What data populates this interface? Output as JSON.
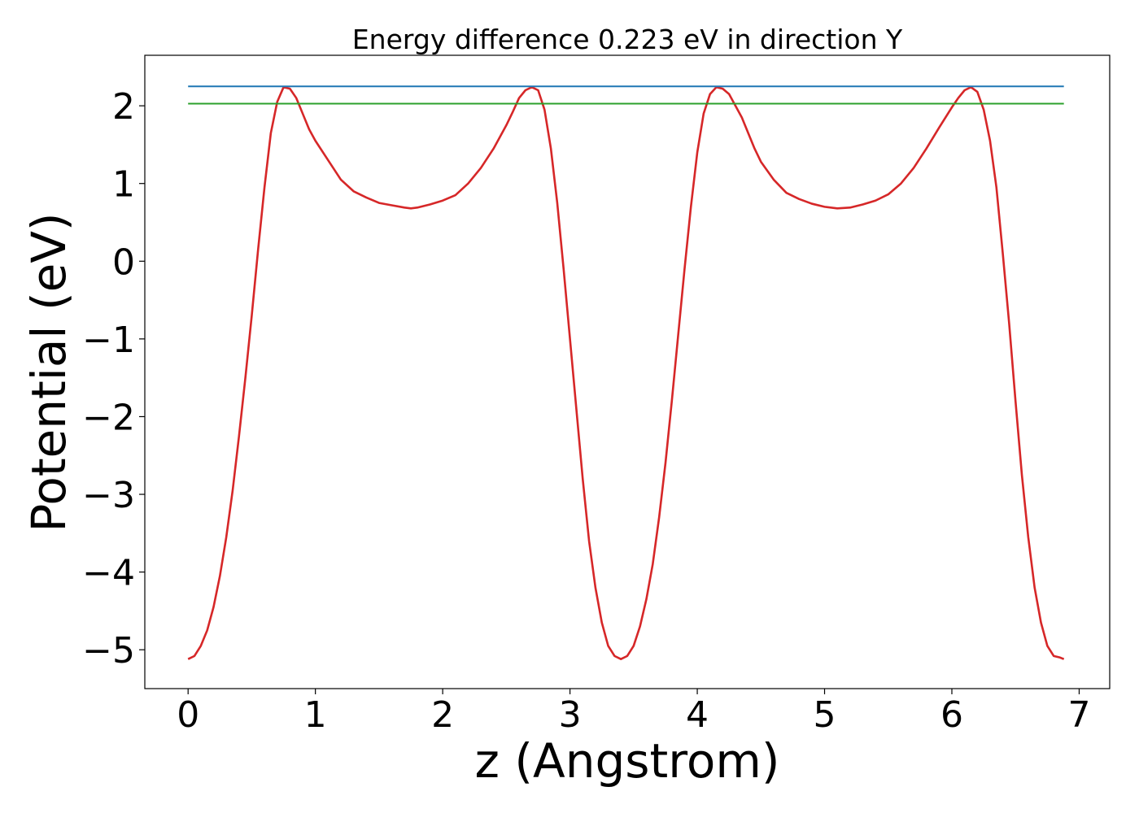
{
  "chart_data": {
    "type": "line",
    "title": "Energy difference 0.223 eV in direction Y",
    "xlabel": "z (Angstrom)",
    "ylabel": "Potential (eV)",
    "xlim": [
      -0.34,
      7.24
    ],
    "ylim": [
      -5.5,
      2.65
    ],
    "xticks": [
      0,
      1,
      2,
      3,
      4,
      5,
      6,
      7
    ],
    "yticks": [
      -5,
      -4,
      -3,
      -2,
      -1,
      0,
      1,
      2
    ],
    "xtick_labels": [
      "0",
      "1",
      "2",
      "3",
      "4",
      "5",
      "6",
      "7"
    ],
    "ytick_labels": [
      "−5",
      "−4",
      "−3",
      "−2",
      "−1",
      "0",
      "1",
      "2"
    ],
    "grid": false,
    "legend": false,
    "series": [
      {
        "color": "#d62728",
        "x": [
          0.0,
          0.05,
          0.1,
          0.15,
          0.2,
          0.25,
          0.3,
          0.35,
          0.4,
          0.45,
          0.5,
          0.55,
          0.6,
          0.65,
          0.7,
          0.75,
          0.8,
          0.85,
          0.9,
          0.95,
          1.0,
          1.1,
          1.2,
          1.3,
          1.4,
          1.5,
          1.6,
          1.7,
          1.75,
          1.8,
          1.9,
          2.0,
          2.1,
          2.2,
          2.3,
          2.4,
          2.5,
          2.55,
          2.6,
          2.65,
          2.7,
          2.75,
          2.8,
          2.85,
          2.9,
          2.95,
          3.0,
          3.05,
          3.1,
          3.15,
          3.2,
          3.25,
          3.3,
          3.35,
          3.4,
          3.45,
          3.5,
          3.55,
          3.6,
          3.65,
          3.7,
          3.75,
          3.8,
          3.85,
          3.9,
          3.95,
          4.0,
          4.05,
          4.1,
          4.15,
          4.2,
          4.25,
          4.3,
          4.35,
          4.4,
          4.45,
          4.5,
          4.6,
          4.7,
          4.8,
          4.9,
          5.0,
          5.1,
          5.2,
          5.3,
          5.4,
          5.5,
          5.6,
          5.7,
          5.8,
          5.9,
          6.0,
          6.05,
          6.1,
          6.15,
          6.2,
          6.25,
          6.3,
          6.35,
          6.4,
          6.45,
          6.5,
          6.55,
          6.6,
          6.65,
          6.7,
          6.75,
          6.8,
          6.85,
          6.88
        ],
        "y": [
          -5.12,
          -5.08,
          -4.95,
          -4.75,
          -4.45,
          -4.05,
          -3.55,
          -2.95,
          -2.25,
          -1.5,
          -0.7,
          0.15,
          0.95,
          1.65,
          2.05,
          2.24,
          2.22,
          2.1,
          1.9,
          1.7,
          1.55,
          1.3,
          1.05,
          0.9,
          0.82,
          0.75,
          0.72,
          0.69,
          0.68,
          0.69,
          0.73,
          0.78,
          0.85,
          1.0,
          1.2,
          1.45,
          1.75,
          1.92,
          2.1,
          2.2,
          2.24,
          2.2,
          1.95,
          1.45,
          0.75,
          -0.1,
          -1.0,
          -1.9,
          -2.8,
          -3.6,
          -4.2,
          -4.65,
          -4.95,
          -5.08,
          -5.12,
          -5.08,
          -4.95,
          -4.7,
          -4.35,
          -3.9,
          -3.3,
          -2.6,
          -1.8,
          -0.95,
          -0.1,
          0.7,
          1.4,
          1.9,
          2.15,
          2.24,
          2.22,
          2.15,
          2.0,
          1.85,
          1.65,
          1.45,
          1.28,
          1.05,
          0.88,
          0.8,
          0.74,
          0.7,
          0.68,
          0.69,
          0.73,
          0.78,
          0.86,
          1.0,
          1.2,
          1.45,
          1.72,
          1.98,
          2.1,
          2.2,
          2.24,
          2.18,
          1.95,
          1.55,
          0.95,
          0.1,
          -0.8,
          -1.8,
          -2.75,
          -3.55,
          -4.2,
          -4.65,
          -4.95,
          -5.08,
          -5.1,
          -5.12
        ]
      },
      {
        "color": "#1f77b4",
        "x": [
          0.0,
          6.88
        ],
        "y": [
          2.25,
          2.25
        ]
      },
      {
        "color": "#2ca02c",
        "x": [
          0.0,
          6.88
        ],
        "y": [
          2.027,
          2.027
        ]
      }
    ]
  }
}
